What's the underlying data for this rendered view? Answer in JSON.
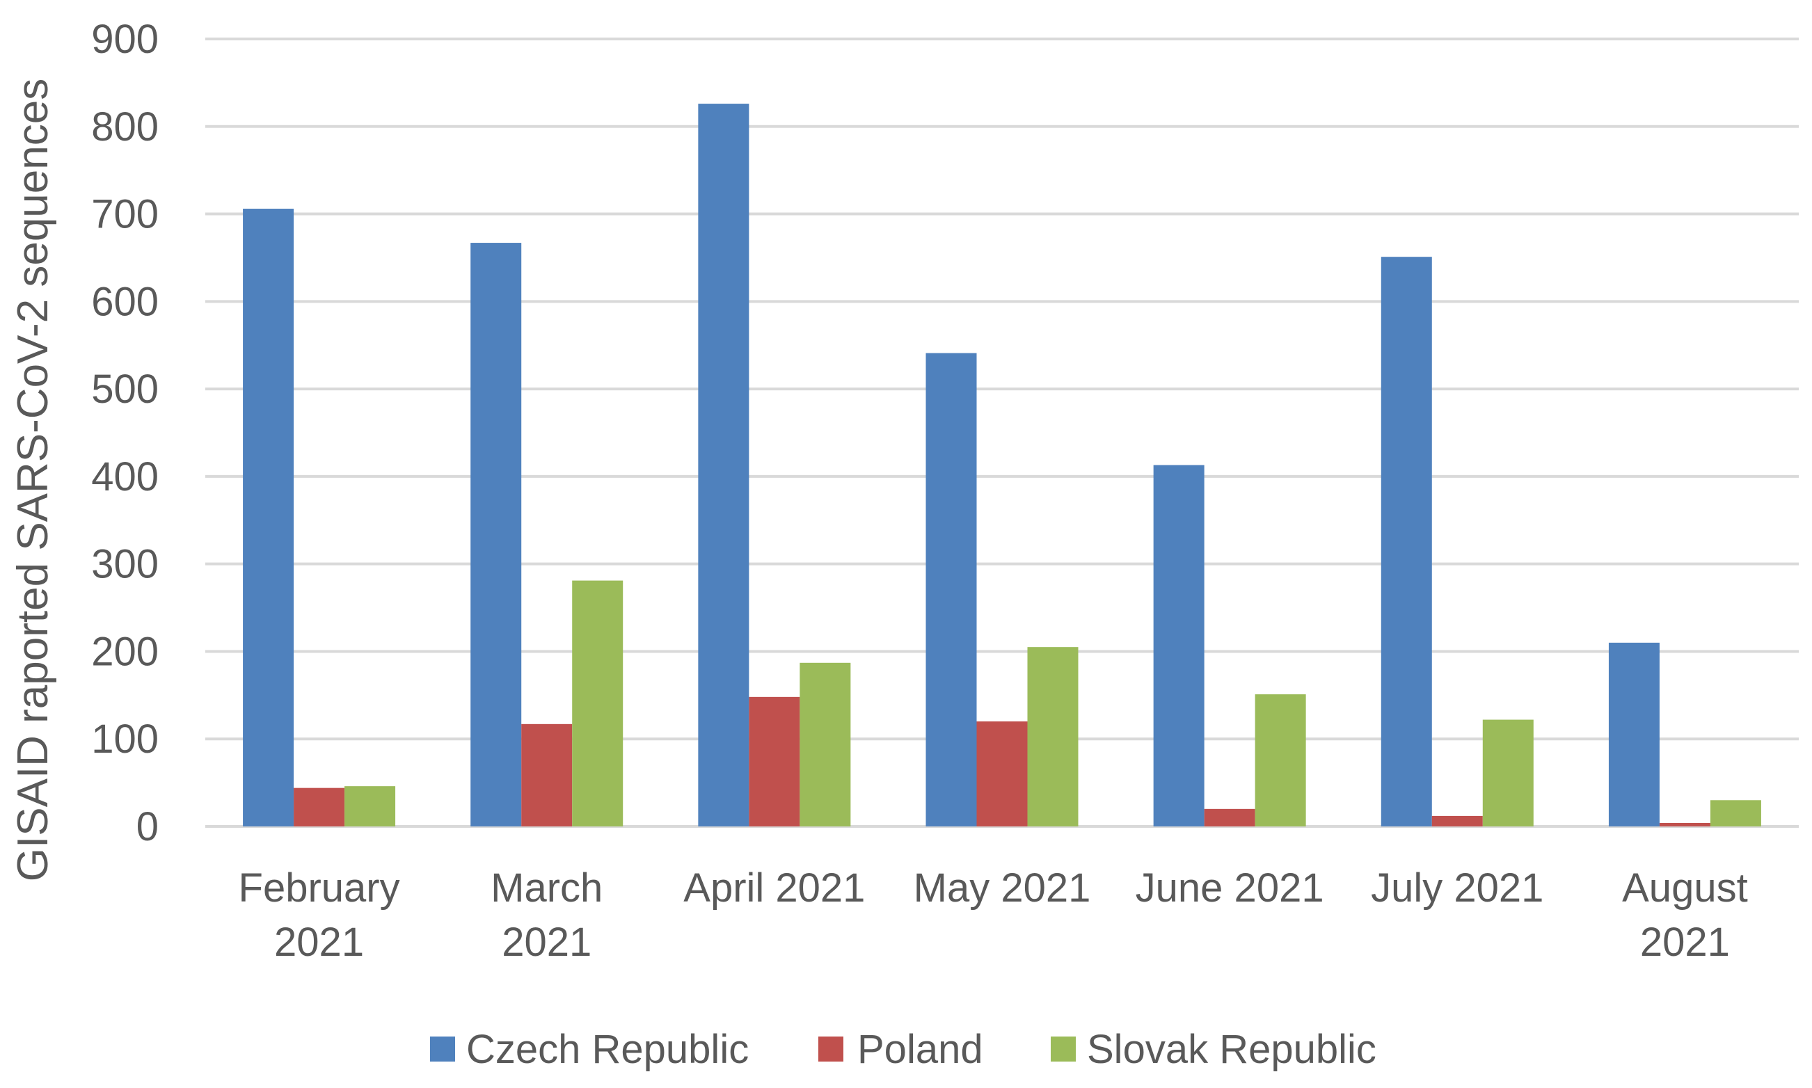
{
  "chart_data": {
    "type": "bar",
    "title": "",
    "xlabel": "",
    "ylabel": "GISAID raported SARS-CoV-2 sequences",
    "categories": [
      [
        "February",
        "2021"
      ],
      [
        "March",
        "2021"
      ],
      [
        "April 2021"
      ],
      [
        "May 2021"
      ],
      [
        "June 2021"
      ],
      [
        "July 2021"
      ],
      [
        "August",
        "2021"
      ]
    ],
    "series": [
      {
        "name": "Czech Republic",
        "color": "#4F81BD",
        "values": [
          706,
          667,
          826,
          541,
          413,
          651,
          210
        ]
      },
      {
        "name": "Poland",
        "color": "#C0504D",
        "values": [
          44,
          117,
          148,
          120,
          20,
          12,
          4
        ]
      },
      {
        "name": "Slovak Republic",
        "color": "#9BBB59",
        "values": [
          46,
          281,
          187,
          205,
          151,
          122,
          30
        ]
      }
    ],
    "ylim": [
      0,
      900
    ],
    "yticks": [
      0,
      100,
      200,
      300,
      400,
      500,
      600,
      700,
      800,
      900
    ],
    "grid": true,
    "legend": "bottom"
  }
}
